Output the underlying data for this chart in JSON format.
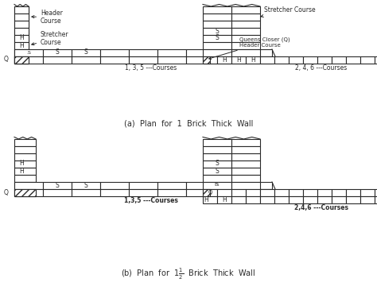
{
  "bg_color": "#ffffff",
  "line_color": "#2a2a2a",
  "title_a": "(a)  Plan  for  1  Brick  Thick  Wall",
  "title_b": "(b)  Plan  for  1½  Brick  Thick  Wall",
  "label_135_a": "1, 3, 5 ---Courses",
  "label_246_a": "2, 4, 6 ---Courses",
  "label_135_b": "1,3,5 ---Courses",
  "label_246_b": "2,4,6 ---Courses"
}
